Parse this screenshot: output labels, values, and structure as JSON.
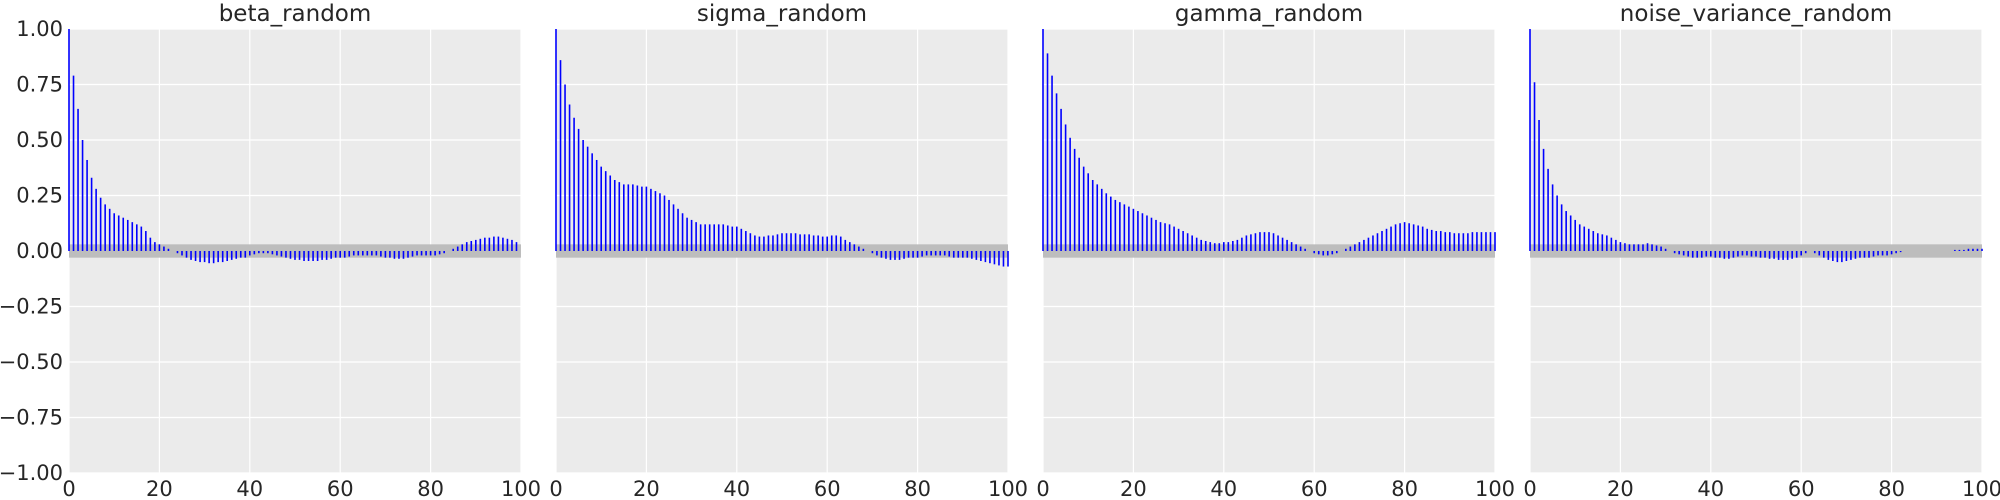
{
  "chart_data": [
    {
      "type": "bar",
      "title": "beta_random",
      "xlabel": "",
      "ylabel": "",
      "xlim": [
        0,
        100
      ],
      "ylim": [
        -1,
        1
      ],
      "xticks": [
        "0",
        "20",
        "40",
        "60",
        "80",
        "100"
      ],
      "yticks": [
        "1.00",
        "0.75",
        "0.50",
        "0.25",
        "0.00",
        "−0.25",
        "−0.50",
        "−0.75",
        "−1.00"
      ],
      "band": [
        -0.03,
        0.03
      ],
      "bar_color": "#0000ff",
      "band_color": "#bdbdbd",
      "values": [
        1.0,
        0.79,
        0.64,
        0.5,
        0.41,
        0.33,
        0.28,
        0.24,
        0.21,
        0.19,
        0.17,
        0.16,
        0.15,
        0.14,
        0.13,
        0.12,
        0.11,
        0.09,
        0.06,
        0.04,
        0.03,
        0.02,
        0.01,
        0.0,
        -0.01,
        -0.02,
        -0.03,
        -0.04,
        -0.045,
        -0.05,
        -0.05,
        -0.055,
        -0.055,
        -0.05,
        -0.05,
        -0.045,
        -0.04,
        -0.035,
        -0.03,
        -0.03,
        -0.02,
        -0.015,
        -0.01,
        -0.01,
        -0.01,
        -0.015,
        -0.02,
        -0.025,
        -0.03,
        -0.035,
        -0.04,
        -0.04,
        -0.045,
        -0.045,
        -0.045,
        -0.045,
        -0.04,
        -0.04,
        -0.035,
        -0.03,
        -0.03,
        -0.03,
        -0.025,
        -0.02,
        -0.02,
        -0.02,
        -0.02,
        -0.02,
        -0.02,
        -0.025,
        -0.03,
        -0.03,
        -0.035,
        -0.035,
        -0.035,
        -0.03,
        -0.025,
        -0.02,
        -0.02,
        -0.02,
        -0.02,
        -0.02,
        -0.015,
        -0.01,
        0.0,
        0.01,
        0.02,
        0.03,
        0.04,
        0.045,
        0.05,
        0.055,
        0.06,
        0.06,
        0.065,
        0.065,
        0.06,
        0.055,
        0.05,
        0.04
      ]
    },
    {
      "type": "bar",
      "title": "sigma_random",
      "xlabel": "",
      "ylabel": "",
      "xlim": [
        0,
        100
      ],
      "ylim": [
        -1,
        1
      ],
      "xticks": [
        "0",
        "20",
        "40",
        "60",
        "80",
        "100"
      ],
      "yticks": [],
      "band": [
        -0.03,
        0.03
      ],
      "bar_color": "#0000ff",
      "band_color": "#bdbdbd",
      "values": [
        1.0,
        0.86,
        0.75,
        0.66,
        0.6,
        0.55,
        0.5,
        0.47,
        0.44,
        0.41,
        0.38,
        0.36,
        0.34,
        0.32,
        0.31,
        0.3,
        0.3,
        0.3,
        0.295,
        0.29,
        0.29,
        0.28,
        0.27,
        0.26,
        0.25,
        0.23,
        0.21,
        0.19,
        0.17,
        0.15,
        0.14,
        0.13,
        0.12,
        0.12,
        0.12,
        0.12,
        0.12,
        0.12,
        0.115,
        0.11,
        0.11,
        0.1,
        0.09,
        0.08,
        0.07,
        0.065,
        0.065,
        0.07,
        0.07,
        0.075,
        0.08,
        0.08,
        0.08,
        0.08,
        0.075,
        0.075,
        0.075,
        0.07,
        0.07,
        0.065,
        0.065,
        0.07,
        0.07,
        0.065,
        0.05,
        0.04,
        0.03,
        0.02,
        0.01,
        0.0,
        -0.01,
        -0.02,
        -0.03,
        -0.035,
        -0.04,
        -0.04,
        -0.04,
        -0.035,
        -0.03,
        -0.03,
        -0.03,
        -0.025,
        -0.02,
        -0.02,
        -0.02,
        -0.02,
        -0.02,
        -0.025,
        -0.03,
        -0.03,
        -0.03,
        -0.03,
        -0.035,
        -0.04,
        -0.045,
        -0.05,
        -0.055,
        -0.06,
        -0.065,
        -0.07,
        -0.07
      ]
    },
    {
      "type": "bar",
      "title": "gamma_random",
      "xlabel": "",
      "ylabel": "",
      "xlim": [
        0,
        100
      ],
      "ylim": [
        -1,
        1
      ],
      "xticks": [
        "0",
        "20",
        "40",
        "60",
        "80",
        "100"
      ],
      "yticks": [],
      "band": [
        -0.03,
        0.03
      ],
      "bar_color": "#0000ff",
      "band_color": "#bdbdbd",
      "values": [
        1.0,
        0.89,
        0.79,
        0.71,
        0.64,
        0.57,
        0.51,
        0.46,
        0.42,
        0.38,
        0.35,
        0.32,
        0.3,
        0.28,
        0.26,
        0.245,
        0.23,
        0.22,
        0.21,
        0.2,
        0.19,
        0.18,
        0.17,
        0.16,
        0.15,
        0.14,
        0.13,
        0.125,
        0.12,
        0.11,
        0.1,
        0.09,
        0.08,
        0.07,
        0.06,
        0.05,
        0.045,
        0.04,
        0.035,
        0.035,
        0.04,
        0.04,
        0.045,
        0.05,
        0.06,
        0.07,
        0.075,
        0.08,
        0.085,
        0.085,
        0.085,
        0.08,
        0.07,
        0.06,
        0.05,
        0.04,
        0.03,
        0.02,
        0.01,
        0.0,
        -0.01,
        -0.015,
        -0.02,
        -0.02,
        -0.015,
        -0.01,
        0.0,
        0.01,
        0.02,
        0.03,
        0.04,
        0.05,
        0.06,
        0.07,
        0.08,
        0.09,
        0.1,
        0.11,
        0.12,
        0.125,
        0.13,
        0.125,
        0.12,
        0.115,
        0.11,
        0.1,
        0.095,
        0.09,
        0.09,
        0.085,
        0.085,
        0.08,
        0.08,
        0.08,
        0.08,
        0.085,
        0.085,
        0.085,
        0.085,
        0.085,
        0.085
      ]
    },
    {
      "type": "bar",
      "title": "noise_variance_random",
      "xlabel": "",
      "ylabel": "",
      "xlim": [
        0,
        100
      ],
      "ylim": [
        -1,
        1
      ],
      "xticks": [
        "0",
        "20",
        "40",
        "60",
        "80",
        "100"
      ],
      "yticks": [],
      "band": [
        -0.03,
        0.03
      ],
      "bar_color": "#0000ff",
      "band_color": "#bdbdbd",
      "values": [
        1.0,
        0.76,
        0.59,
        0.46,
        0.37,
        0.3,
        0.25,
        0.21,
        0.18,
        0.16,
        0.14,
        0.12,
        0.11,
        0.1,
        0.09,
        0.08,
        0.075,
        0.07,
        0.06,
        0.05,
        0.04,
        0.035,
        0.03,
        0.03,
        0.03,
        0.03,
        0.035,
        0.03,
        0.025,
        0.02,
        0.01,
        0.0,
        -0.01,
        -0.015,
        -0.02,
        -0.025,
        -0.03,
        -0.03,
        -0.03,
        -0.025,
        -0.025,
        -0.03,
        -0.03,
        -0.035,
        -0.035,
        -0.03,
        -0.025,
        -0.02,
        -0.02,
        -0.025,
        -0.025,
        -0.03,
        -0.03,
        -0.035,
        -0.035,
        -0.04,
        -0.04,
        -0.04,
        -0.035,
        -0.03,
        -0.02,
        -0.01,
        0.0,
        -0.01,
        -0.02,
        -0.03,
        -0.04,
        -0.045,
        -0.05,
        -0.05,
        -0.045,
        -0.04,
        -0.035,
        -0.03,
        -0.03,
        -0.03,
        -0.025,
        -0.02,
        -0.02,
        -0.02,
        -0.015,
        -0.01,
        -0.005,
        0.0,
        0.0,
        0.0,
        0.0,
        0.0,
        0.0,
        0.0,
        0.0,
        0.0,
        0.0,
        0.0,
        0.005,
        0.005,
        0.005,
        0.01,
        0.01,
        0.01,
        0.01
      ]
    }
  ]
}
